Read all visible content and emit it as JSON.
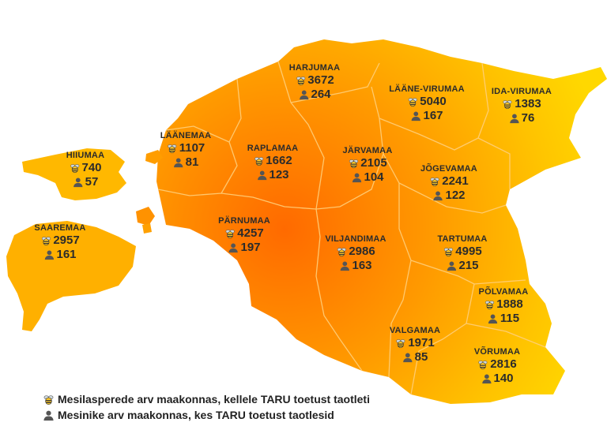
{
  "counties": [
    {
      "name": "HARJUMAA",
      "bees": "3672",
      "keepers": "264"
    },
    {
      "name": "LÄÄNE-VIRUMAA",
      "bees": "5040",
      "keepers": "167"
    },
    {
      "name": "IDA-VIRUMAA",
      "bees": "1383",
      "keepers": "76"
    },
    {
      "name": "HIIUMAA",
      "bees": "740",
      "keepers": "57"
    },
    {
      "name": "LÄÄNEMAA",
      "bees": "1107",
      "keepers": "81"
    },
    {
      "name": "RAPLAMAA",
      "bees": "1662",
      "keepers": "123"
    },
    {
      "name": "JÄRVAMAA",
      "bees": "2105",
      "keepers": "104"
    },
    {
      "name": "JÕGEVAMAA",
      "bees": "2241",
      "keepers": "122"
    },
    {
      "name": "SAAREMAA",
      "bees": "2957",
      "keepers": "161"
    },
    {
      "name": "PÄRNUMAA",
      "bees": "4257",
      "keepers": "197"
    },
    {
      "name": "VILJANDIMAA",
      "bees": "2986",
      "keepers": "163"
    },
    {
      "name": "TARTUMAA",
      "bees": "4995",
      "keepers": "215"
    },
    {
      "name": "PÕLVAMAA",
      "bees": "1888",
      "keepers": "115"
    },
    {
      "name": "VALGAMAA",
      "bees": "1971",
      "keepers": "85"
    },
    {
      "name": "VÕRUMAA",
      "bees": "2816",
      "keepers": "140"
    }
  ],
  "legend": {
    "bees_label": "Mesilasperede arv maakonnas, kellele TARU toetust taotleti",
    "keepers_label": "Mesinike arv maakonnas, kes TARU toetust taotlesid"
  },
  "icons": {
    "bees": "bee-icon",
    "keepers": "person-icon"
  },
  "colors": {
    "center": "#ff6a00",
    "edge": "#ffd000",
    "border": "#ffcf7a",
    "text": "#2b2b2b"
  }
}
